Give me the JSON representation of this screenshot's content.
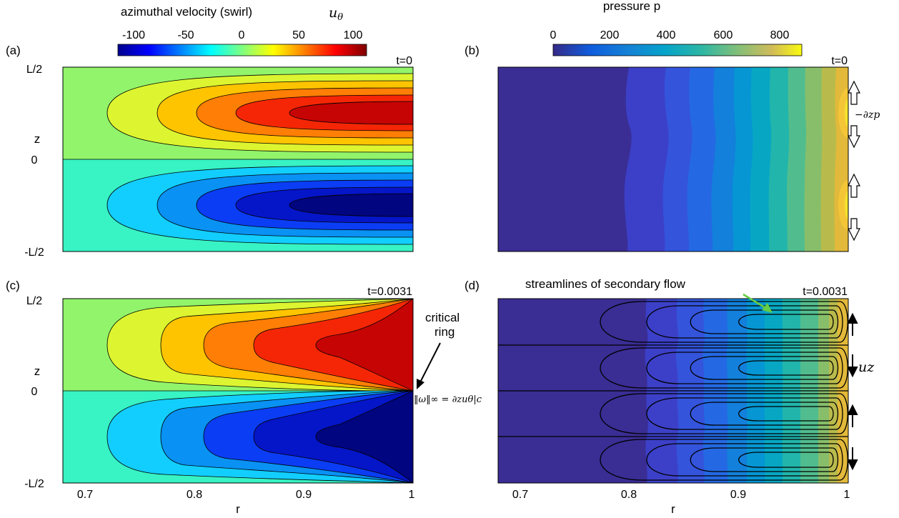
{
  "figure": {
    "colorbar_a": {
      "title": "azimuthal velocity (swirl)",
      "title_math": "u",
      "title_math_sub": "θ",
      "ticks": [
        "-100",
        "-50",
        "0",
        "50",
        "100"
      ],
      "range": [
        -100,
        100
      ],
      "colormap": "jet"
    },
    "colorbar_b": {
      "title": "pressure p",
      "ticks": [
        "0",
        "200",
        "400",
        "600",
        "800"
      ],
      "range": [
        0,
        880
      ],
      "colormap": "parula"
    },
    "panels": [
      {
        "label": "(a)",
        "time": "t=0"
      },
      {
        "label": "(b)",
        "time": "t=0"
      },
      {
        "label": "(c)",
        "time": "t=0.0031"
      },
      {
        "label": "(d)",
        "time": "t=0.0031"
      }
    ],
    "axes": {
      "ylabel": "z",
      "xlabel": "r",
      "yticks": [
        "L/2",
        "0",
        "-L/2"
      ],
      "xticks": [
        "0.7",
        "0.8",
        "0.9",
        "1"
      ],
      "xlim": [
        0.68,
        1.0
      ]
    },
    "annotations": {
      "critical_line1": "critical",
      "critical_line2": "ring",
      "omega_formula": "‖ω‖∞ = ∂zuθ|c",
      "pressure_gradient": "−∂zp",
      "streamlines": "streamlines of secondary flow",
      "uz": "uz"
    },
    "colors": {
      "annotation_arrow": "#66cc44",
      "contour_line": "#000000"
    }
  }
}
